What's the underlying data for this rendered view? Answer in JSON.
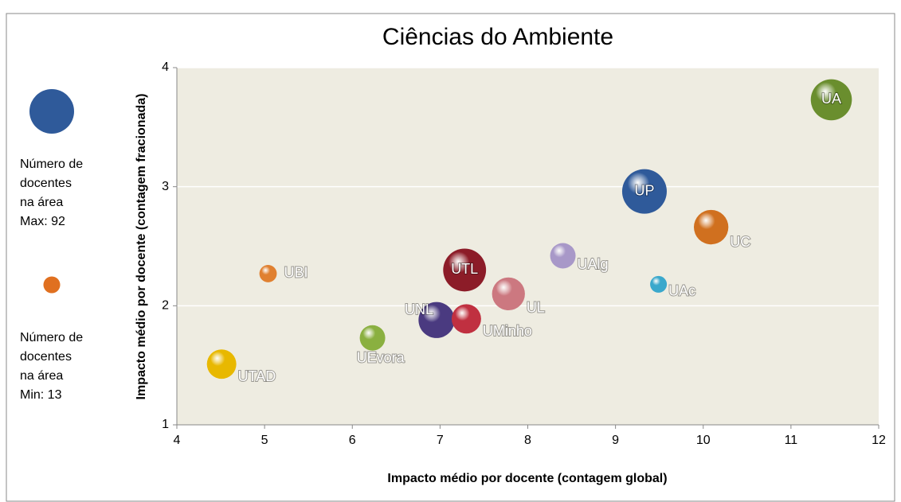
{
  "chart_data": {
    "type": "bubble",
    "title": "Ciências do Ambiente",
    "x_label": "Impacto médio por docente (contagem global)",
    "y_label": "Impacto médio por docente (contagem fracionada)",
    "xlim": [
      4,
      12
    ],
    "xticks": [
      4,
      5,
      6,
      7,
      8,
      9,
      10,
      11,
      12
    ],
    "ylim": [
      1,
      4
    ],
    "yticks": [
      1,
      2,
      3,
      4
    ],
    "grid": true,
    "series": [
      {
        "labels": [
          "UA",
          "UP",
          "UC",
          "UAlg",
          "UAc",
          "UTL",
          "UL",
          "UNL",
          "UMinho",
          "UBI",
          "UEvora",
          "UTAD"
        ],
        "x": [
          11.46,
          9.33,
          10.09,
          8.4,
          9.49,
          7.28,
          7.78,
          6.96,
          7.3,
          5.04,
          6.23,
          4.51
        ],
        "values": [
          3.73,
          2.96,
          2.66,
          2.42,
          2.18,
          2.3,
          2.1,
          1.88,
          1.89,
          2.27,
          1.73,
          1.51
        ],
        "sizes": [
          78,
          92,
          55,
          30,
          13,
          85,
          50,
          60,
          40,
          14,
          30,
          40
        ],
        "colors": [
          "#6a8e2e",
          "#2f5a9a",
          "#d0701f",
          "#a898c8",
          "#3aa8cc",
          "#8c1c28",
          "#cc7880",
          "#4a3a80",
          "#c03040",
          "#e08030",
          "#8ab040",
          "#e8b800"
        ]
      }
    ],
    "legend": [
      {
        "lines": [
          "Número de",
          "docentes",
          "na área",
          "Max: 92"
        ],
        "size": 92,
        "color": "#2f5a9a"
      },
      {
        "lines": [
          "Número de",
          "docentes",
          "na área",
          "Min: 13"
        ],
        "size": 13,
        "color": "#e07020"
      }
    ]
  }
}
